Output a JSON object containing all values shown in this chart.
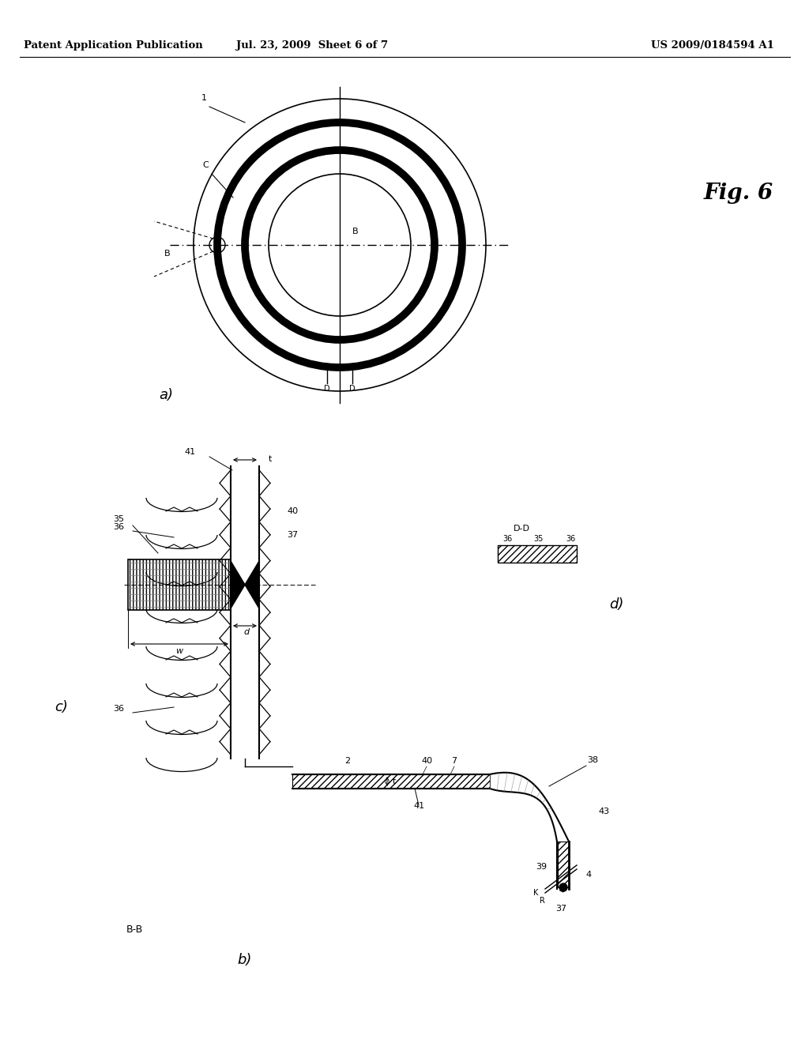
{
  "bg_color": "#ffffff",
  "header_left": "Patent Application Publication",
  "header_mid": "Jul. 23, 2009  Sheet 6 of 7",
  "header_right": "US 2009/0184594 A1",
  "fig_label": "Fig. 6",
  "header_fontsize": 9.5,
  "label_fontsize": 8
}
